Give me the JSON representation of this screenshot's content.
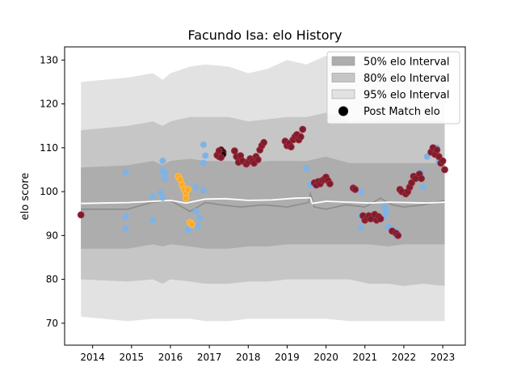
{
  "chart_data": {
    "type": "scatter",
    "title": "Facundo Isa: elo History",
    "xlabel": "",
    "ylabel": "elo score",
    "xlim": [
      2013.28,
      2023.58
    ],
    "ylim": [
      65,
      133
    ],
    "x_ticks": [
      "2014",
      "2015",
      "2016",
      "2017",
      "2018",
      "2019",
      "2020",
      "2021",
      "2022",
      "2023"
    ],
    "y_ticks": [
      "70",
      "80",
      "90",
      "100",
      "110",
      "120",
      "130"
    ],
    "legend": {
      "placement": "top-right",
      "entries": [
        "50% elo Interval",
        "80% elo Interval",
        "95% elo Interval",
        "Post Match elo"
      ]
    },
    "colors": {
      "band50": "#adadad",
      "band80": "#c6c6c6",
      "band95": "#e2e2e2",
      "median_line": "#ffffff",
      "mean_line": "#8c8c8c",
      "points_blue": "#7fb3e6",
      "points_orange": "#ffa726",
      "points_red": "#7b1c2b",
      "points_black": "#000000"
    },
    "bands": {
      "x": [
        2013.7,
        2014.9,
        2015.55,
        2015.8,
        2016.0,
        2016.5,
        2016.9,
        2017.5,
        2018.0,
        2018.5,
        2019.0,
        2019.5,
        2020.0,
        2020.6,
        2021.1,
        2021.6,
        2022.0,
        2022.5,
        2023.05
      ],
      "p95_hi": [
        125,
        126,
        127,
        125.5,
        127,
        128.5,
        129,
        128.5,
        127,
        128,
        130,
        129,
        131,
        128,
        127,
        128,
        127,
        127.5,
        126
      ],
      "p80_hi": [
        114,
        115,
        116,
        115,
        116,
        117,
        117,
        117,
        116,
        116.5,
        117,
        117,
        118,
        116,
        116,
        116.5,
        116,
        116,
        116
      ],
      "p50_hi": [
        105.5,
        106,
        107,
        106,
        107,
        107.5,
        107,
        107,
        106.5,
        107,
        107,
        107,
        108,
        106.5,
        106.5,
        106.5,
        106.5,
        106.5,
        106.5
      ],
      "p50_lo": [
        87,
        87,
        88,
        87.5,
        88,
        87.5,
        87,
        87,
        87.5,
        87.5,
        88,
        88,
        88,
        88,
        88,
        87.5,
        88,
        88,
        88
      ],
      "p80_lo": [
        80,
        79.5,
        80,
        79,
        80,
        79.5,
        79,
        79,
        79.5,
        79.5,
        80,
        80,
        80,
        80,
        79,
        79,
        78.5,
        79,
        78.5
      ],
      "p95_lo": [
        71.5,
        70.5,
        71,
        71,
        71,
        71,
        70.5,
        70.5,
        71,
        71,
        71,
        71,
        71,
        70.5,
        70.5,
        70.5,
        70.5,
        70.5,
        70.5
      ]
    },
    "median_line": {
      "x": [
        2013.7,
        2014.9,
        2015.6,
        2016.0,
        2016.4,
        2016.9,
        2017.4,
        2018.0,
        2018.6,
        2019.2,
        2019.6,
        2019.65,
        2020.0,
        2020.6,
        2021.1,
        2021.6,
        2022.1,
        2022.6,
        2023.05
      ],
      "y": [
        97.3,
        97.5,
        97.8,
        98.0,
        97.4,
        98.3,
        98.4,
        98.0,
        98.1,
        98.5,
        98.6,
        97.3,
        97.8,
        97.6,
        97.4,
        97.6,
        97.5,
        97.4,
        97.6
      ]
    },
    "mean_line": {
      "x": [
        2013.7,
        2014.9,
        2015.5,
        2016.0,
        2016.3,
        2016.5,
        2016.9,
        2017.3,
        2017.8,
        2018.4,
        2019.0,
        2019.55,
        2019.6,
        2019.7,
        2020.0,
        2020.5,
        2021.0,
        2021.4,
        2021.7,
        2022.0,
        2022.5,
        2023.05
      ],
      "y": [
        96.0,
        96.0,
        97.5,
        98.0,
        96.5,
        95.5,
        97.5,
        97.0,
        96.5,
        97.0,
        96.5,
        97.5,
        99.5,
        96.5,
        96.0,
        97.0,
        96.5,
        98.5,
        97.0,
        96.5,
        97.0,
        98.0
      ]
    },
    "points_blue": [
      [
        2014.85,
        104.5
      ],
      [
        2014.85,
        94.3
      ],
      [
        2014.85,
        91.6
      ],
      [
        2015.55,
        99.0
      ],
      [
        2015.55,
        93.5
      ],
      [
        2015.75,
        99.8
      ],
      [
        2015.8,
        98.6
      ],
      [
        2015.8,
        107.0
      ],
      [
        2015.8,
        104.8
      ],
      [
        2015.85,
        103.0
      ],
      [
        2015.85,
        104.3
      ],
      [
        2016.45,
        91.2
      ],
      [
        2016.5,
        91.8
      ],
      [
        2016.65,
        101.0
      ],
      [
        2016.65,
        95.5
      ],
      [
        2016.7,
        92.2
      ],
      [
        2016.75,
        94.0
      ],
      [
        2016.85,
        100.2
      ],
      [
        2016.85,
        106.5
      ],
      [
        2016.85,
        110.7
      ],
      [
        2016.9,
        108.2
      ],
      [
        2019.5,
        105.3
      ],
      [
        2019.6,
        101.5
      ],
      [
        2020.9,
        100.0
      ],
      [
        2020.9,
        94.3
      ],
      [
        2020.9,
        91.8
      ],
      [
        2021.5,
        96.5
      ],
      [
        2021.5,
        94.5
      ],
      [
        2021.55,
        95.5
      ],
      [
        2021.6,
        92.0
      ],
      [
        2021.8,
        91.0
      ],
      [
        2021.8,
        90.0
      ],
      [
        2022.45,
        104.5
      ],
      [
        2022.5,
        101.0
      ],
      [
        2022.6,
        108.0
      ],
      [
        2022.85,
        110.0
      ],
      [
        2022.9,
        107.0
      ]
    ],
    "points_orange": [
      [
        2016.2,
        103.5
      ],
      [
        2016.25,
        102.8
      ],
      [
        2016.3,
        101.5
      ],
      [
        2016.35,
        100.5
      ],
      [
        2016.4,
        99.5
      ],
      [
        2016.4,
        98.5
      ],
      [
        2016.45,
        100.5
      ],
      [
        2016.5,
        93.0
      ],
      [
        2016.55,
        92.5
      ]
    ],
    "points_black": [
      [
        2017.25,
        108.0
      ],
      [
        2017.3,
        109.5
      ],
      [
        2017.35,
        109.0
      ],
      [
        2017.35,
        108.5
      ]
    ],
    "points_red": [
      [
        2013.7,
        94.7
      ],
      [
        2017.2,
        108.3
      ],
      [
        2017.25,
        109.3
      ],
      [
        2017.3,
        107.8
      ],
      [
        2017.65,
        109.3
      ],
      [
        2017.7,
        108.0
      ],
      [
        2017.75,
        106.7
      ],
      [
        2017.8,
        108.2
      ],
      [
        2017.85,
        107.0
      ],
      [
        2017.95,
        106.3
      ],
      [
        2018.0,
        106.8
      ],
      [
        2018.05,
        107.5
      ],
      [
        2018.1,
        107.0
      ],
      [
        2018.15,
        106.5
      ],
      [
        2018.2,
        108.0
      ],
      [
        2018.25,
        107.3
      ],
      [
        2018.3,
        109.5
      ],
      [
        2018.35,
        110.5
      ],
      [
        2018.4,
        111.2
      ],
      [
        2018.95,
        111.5
      ],
      [
        2019.0,
        110.5
      ],
      [
        2019.05,
        111.0
      ],
      [
        2019.1,
        110.2
      ],
      [
        2019.15,
        111.8
      ],
      [
        2019.2,
        112.5
      ],
      [
        2019.25,
        113.0
      ],
      [
        2019.3,
        111.8
      ],
      [
        2019.35,
        112.5
      ],
      [
        2019.4,
        114.2
      ],
      [
        2019.7,
        102.0
      ],
      [
        2019.75,
        101.5
      ],
      [
        2019.8,
        102.3
      ],
      [
        2019.85,
        101.8
      ],
      [
        2019.9,
        102.5
      ],
      [
        2019.95,
        102.8
      ],
      [
        2020.0,
        103.3
      ],
      [
        2020.05,
        102.5
      ],
      [
        2020.1,
        101.8
      ],
      [
        2020.7,
        100.8
      ],
      [
        2020.75,
        100.5
      ],
      [
        2020.95,
        94.5
      ],
      [
        2021.0,
        93.5
      ],
      [
        2021.05,
        94.0
      ],
      [
        2021.1,
        94.5
      ],
      [
        2021.15,
        93.8
      ],
      [
        2021.25,
        94.8
      ],
      [
        2021.3,
        93.5
      ],
      [
        2021.35,
        94.3
      ],
      [
        2021.4,
        93.8
      ],
      [
        2021.7,
        91.0
      ],
      [
        2021.8,
        90.5
      ],
      [
        2021.85,
        90.0
      ],
      [
        2021.9,
        100.5
      ],
      [
        2021.95,
        100.0
      ],
      [
        2022.05,
        99.5
      ],
      [
        2022.1,
        100.0
      ],
      [
        2022.15,
        101.0
      ],
      [
        2022.2,
        102.0
      ],
      [
        2022.25,
        103.5
      ],
      [
        2022.3,
        103.0
      ],
      [
        2022.4,
        104.0
      ],
      [
        2022.45,
        103.0
      ],
      [
        2022.7,
        109.0
      ],
      [
        2022.75,
        110.0
      ],
      [
        2022.8,
        108.5
      ],
      [
        2022.85,
        109.5
      ],
      [
        2022.9,
        108.0
      ],
      [
        2022.95,
        106.5
      ],
      [
        2023.0,
        107.0
      ],
      [
        2023.05,
        105.0
      ]
    ]
  }
}
